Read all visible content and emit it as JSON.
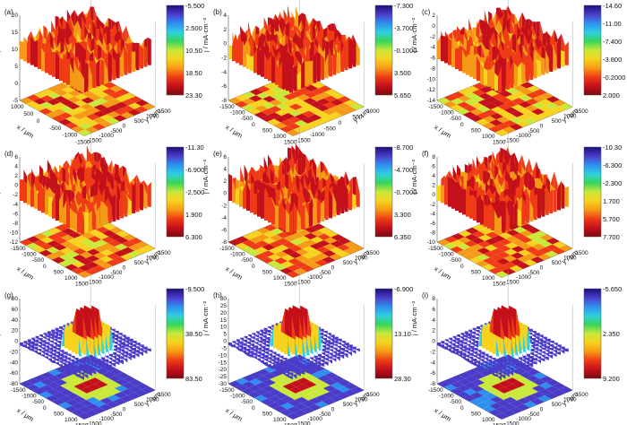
{
  "figure": {
    "colors": {
      "scale": [
        "#1b0f7a",
        "#4a3cc9",
        "#2f8ff0",
        "#2fd0e0",
        "#36d65a",
        "#c9e83a",
        "#f7d21e",
        "#f59a16",
        "#ef3b16",
        "#c4101a",
        "#7a0a10"
      ],
      "axis": "#333333"
    },
    "z_title": "j / mA·cm⁻²",
    "x_title": "x / μm",
    "y_title": "y / μm"
  },
  "chart_data": [
    {
      "type": "heatmap",
      "panel": "(a)",
      "surface": "rough plateau with front cliff",
      "colorbar": [
        "-5.500",
        "2.500",
        "10.50",
        "18.50",
        "23.30"
      ],
      "z_ticks": [
        "20",
        "15",
        "10",
        "5",
        "0",
        "-5"
      ],
      "zlim": [
        -5,
        20
      ],
      "x_ticks": [
        "1000",
        "500",
        "0",
        "-500",
        "-1000",
        "-1500"
      ],
      "y_ticks": [
        "-1500",
        "-1000",
        "-500",
        "0",
        "500",
        "1000",
        "1500"
      ]
    },
    {
      "type": "heatmap",
      "panel": "(b)",
      "surface": "rough plateau",
      "colorbar": [
        "-7.300",
        "-3.700",
        "-0.1000",
        "3.500",
        "5.650"
      ],
      "z_ticks": [
        "4",
        "2",
        "0",
        "-2",
        "-4",
        "-6",
        "-8"
      ],
      "zlim": [
        -8,
        4
      ],
      "x_ticks": [
        "-1500",
        "-1000",
        "-500",
        "0",
        "500",
        "1000",
        "1500"
      ],
      "y_ticks": [
        "-1500",
        "-1000",
        "-500",
        "0",
        "500",
        "1000"
      ]
    },
    {
      "type": "heatmap",
      "panel": "(c)",
      "surface": "rough plateau",
      "colorbar": [
        "-14.60",
        "-11.00",
        "-7.400",
        "-3.800",
        "-0.2000",
        "2.000"
      ],
      "z_ticks": [
        "2",
        "0",
        "-2",
        "-4",
        "-6",
        "-8",
        "-10",
        "-12",
        "-14"
      ],
      "zlim": [
        -14,
        2
      ],
      "x_ticks": [
        "-1500",
        "-1000",
        "-500",
        "0",
        "500",
        "1000",
        "1500"
      ],
      "y_ticks": [
        "-1500",
        "-1000",
        "-500",
        "0",
        "500",
        "1000",
        "1500"
      ]
    },
    {
      "type": "heatmap",
      "panel": "(d)",
      "surface": "rough plateau",
      "colorbar": [
        "-11.30",
        "-6.900",
        "-2.500",
        "1.900",
        "6.300"
      ],
      "z_ticks": [
        "6",
        "4",
        "2",
        "0",
        "-2",
        "-4",
        "-6",
        "-8",
        "-10",
        "-12"
      ],
      "zlim": [
        -12,
        6
      ],
      "x_ticks": [
        "-1500",
        "-1000",
        "-500",
        "0",
        "500",
        "1000",
        "1500"
      ],
      "y_ticks": [
        "-1500",
        "-1000",
        "-500",
        "0",
        "500",
        "1000",
        "1500"
      ]
    },
    {
      "type": "heatmap",
      "panel": "(e)",
      "surface": "rough plateau",
      "colorbar": [
        "-8.700",
        "-4.700",
        "-0.7000",
        "3.300",
        "6.350"
      ],
      "z_ticks": [
        "6",
        "4",
        "2",
        "0",
        "-2",
        "-4",
        "-6",
        "-8"
      ],
      "zlim": [
        -8,
        6
      ],
      "x_ticks": [
        "-1500",
        "-1000",
        "-500",
        "0",
        "500",
        "1000",
        "1500"
      ],
      "y_ticks": [
        "-1500",
        "-1000",
        "-500",
        "0",
        "500",
        "1000",
        "1500"
      ]
    },
    {
      "type": "heatmap",
      "panel": "(f)",
      "surface": "rough plateau",
      "colorbar": [
        "-10.30",
        "-6.300",
        "-2.300",
        "1.700",
        "5.700",
        "7.700"
      ],
      "z_ticks": [
        "8",
        "6",
        "4",
        "2",
        "0",
        "-2",
        "-4",
        "-6",
        "-8",
        "-10"
      ],
      "zlim": [
        -10,
        8
      ],
      "x_ticks": [
        "-1500",
        "-1000",
        "-500",
        "0",
        "500",
        "1000",
        "1500"
      ],
      "y_ticks": [
        "-1500",
        "-1000",
        "-500",
        "0",
        "500",
        "1000",
        "1500"
      ]
    },
    {
      "type": "heatmap",
      "panel": "(g)",
      "surface": "single narrow peak",
      "colorbar": [
        "-9.500",
        "38.50",
        "83.50"
      ],
      "z_ticks": [
        "80",
        "60",
        "40",
        "20",
        "0",
        "-20",
        "-40",
        "-60",
        "-80"
      ],
      "zlim": [
        -80,
        80
      ],
      "x_ticks": [
        "-1500",
        "-1000",
        "-500",
        "0",
        "500",
        "1000",
        "1500"
      ],
      "y_ticks": [
        "-1500",
        "-1000",
        "-500",
        "0",
        "500",
        "1000",
        "1500"
      ]
    },
    {
      "type": "heatmap",
      "panel": "(h)",
      "surface": "single wide peak",
      "colorbar": [
        "-6.900",
        "13.10",
        "28.30"
      ],
      "z_ticks": [
        "30",
        "25",
        "20",
        "15",
        "10",
        "5",
        "0",
        "-5",
        "-10",
        "-15",
        "-20",
        "-25",
        "-30"
      ],
      "zlim": [
        -30,
        30
      ],
      "x_ticks": [
        "-1500",
        "-1000",
        "-500",
        "0",
        "500",
        "1000",
        "1500"
      ],
      "y_ticks": [
        "-1500",
        "-1000",
        "-500",
        "0",
        "500",
        "1000",
        "1500"
      ]
    },
    {
      "type": "heatmap",
      "panel": "(i)",
      "surface": "plateau peak",
      "colorbar": [
        "-5.650",
        "2.350",
        "9.200"
      ],
      "z_ticks": [
        "8",
        "6",
        "4",
        "2",
        "0",
        "-2",
        "-4",
        "-6",
        "-8"
      ],
      "zlim": [
        -8,
        8
      ],
      "x_ticks": [
        "-1500",
        "-1000",
        "-500",
        "0",
        "500",
        "1000",
        "1500"
      ],
      "y_ticks": [
        "-1500",
        "-1000",
        "-500",
        "0",
        "500",
        "1000",
        "1500"
      ]
    }
  ]
}
